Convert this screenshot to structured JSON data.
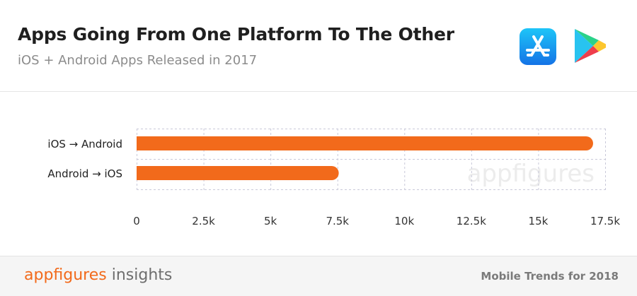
{
  "header": {
    "title": "Apps Going From One Platform To The Other",
    "subtitle": "iOS + Android Apps Released in 2017",
    "icons": [
      "app-store-icon",
      "google-play-icon"
    ]
  },
  "chart_data": {
    "type": "bar",
    "orientation": "horizontal",
    "title": "Apps Going From One Platform To The Other",
    "subtitle": "iOS + Android Apps Released in 2017",
    "categories": [
      "iOS → Android",
      "Android → iOS"
    ],
    "values": [
      17050,
      7550
    ],
    "xlim": [
      0,
      17500
    ],
    "x_ticks": [
      0,
      2500,
      5000,
      7500,
      10000,
      12500,
      15000,
      17500
    ],
    "x_tick_labels": [
      "0",
      "2.5k",
      "5k",
      "7.5k",
      "10k",
      "12.5k",
      "15k",
      "17.5k"
    ],
    "xlabel": "",
    "ylabel": "",
    "grid": true,
    "bar_color": "#f26a1b",
    "grid_color": "#c9c9d9",
    "watermark": "appfigures"
  },
  "footer": {
    "brand_primary": "appfigures",
    "brand_secondary": " insights",
    "right_text": "Mobile Trends for 2018"
  },
  "colors": {
    "accent": "#f26a1b",
    "title": "#1f1f1f",
    "subtitle": "#8c8c8c"
  }
}
